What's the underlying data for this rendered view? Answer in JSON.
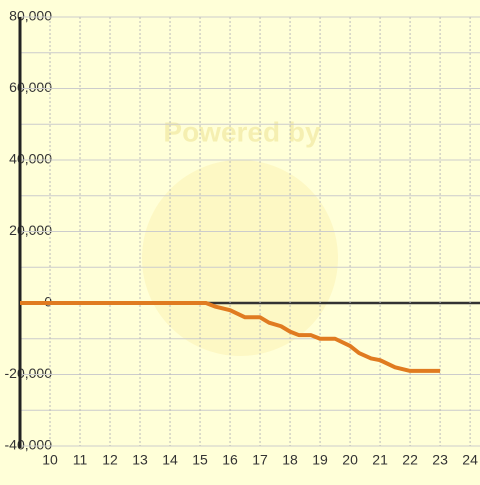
{
  "chart_data": {
    "type": "line",
    "watermark": "Powered by",
    "x": [
      9,
      10,
      11,
      12,
      13,
      14,
      15,
      15.2,
      15.5,
      16,
      16.5,
      17,
      17.3,
      17.7,
      18,
      18.3,
      18.7,
      19,
      19.5,
      20,
      20.3,
      20.7,
      21,
      21.5,
      22,
      23
    ],
    "series": [
      {
        "color": "#e07b20",
        "values": [
          0,
          0,
          0,
          0,
          0,
          0,
          0,
          0,
          -1000,
          -2000,
          -4000,
          -4000,
          -5500,
          -6500,
          -8000,
          -9000,
          -9000,
          -10000,
          -10000,
          -12000,
          -14000,
          -15500,
          -16000,
          -18000,
          -19000,
          -19000
        ]
      }
    ],
    "xlim": [
      9,
      24.33
    ],
    "xticks": [
      10,
      11,
      12,
      13,
      14,
      15,
      16,
      17,
      18,
      19,
      20,
      21,
      22,
      23,
      24
    ],
    "ylim": [
      -40000,
      80000
    ],
    "yticks": [
      {
        "value": -40000,
        "label": "-40,000"
      },
      {
        "value": -20000,
        "label": "-20,000"
      },
      0,
      {
        "value": 20000,
        "label": "20,000"
      },
      {
        "value": 40000,
        "label": "40,000"
      },
      {
        "value": 60000,
        "label": "60,000"
      },
      {
        "value": 80000,
        "label": "80,000"
      }
    ],
    "y_minor_ticks": [
      -30000,
      -10000,
      10000,
      30000,
      50000,
      70000
    ],
    "grid": true
  }
}
